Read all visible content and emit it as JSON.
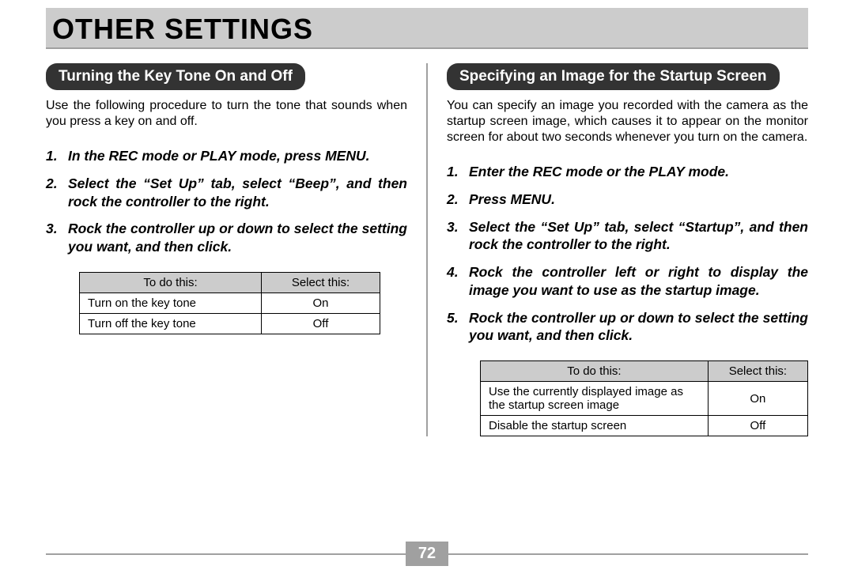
{
  "header": {
    "title": "OTHER SETTINGS"
  },
  "left": {
    "section_title": "Turning the Key Tone On and Off",
    "intro": "Use the following procedure to turn the tone that sounds when you press a key on and off.",
    "steps": [
      "In the REC mode or PLAY mode, press MENU.",
      "Select the “Set Up” tab, select “Beep”, and then rock the controller to the right.",
      "Rock the controller up or down to select the setting you want, and then click."
    ],
    "table": {
      "columns": [
        "To do this:",
        "Select this:"
      ],
      "rows": [
        [
          "Turn on the key tone",
          "On"
        ],
        [
          "Turn off the key tone",
          "Off"
        ]
      ]
    }
  },
  "right": {
    "section_title": "Specifying an Image for the Startup Screen",
    "intro": "You can specify an image you recorded with the camera as the startup screen image, which causes it to appear on the monitor screen for about two seconds whenever you turn on the camera.",
    "steps": [
      "Enter the REC mode or the PLAY mode.",
      "Press MENU.",
      "Select the “Set Up” tab, select “Startup”, and then rock the controller to the right.",
      "Rock the controller left or right to display the image you want to use as the startup image.",
      "Rock the controller up or down to select the setting you want, and then click."
    ],
    "table": {
      "columns": [
        "To do this:",
        "Select this:"
      ],
      "rows": [
        [
          "Use the currently displayed image as the startup screen image",
          "On"
        ],
        [
          "Disable the startup screen",
          "Off"
        ]
      ]
    }
  },
  "page_number": "72"
}
